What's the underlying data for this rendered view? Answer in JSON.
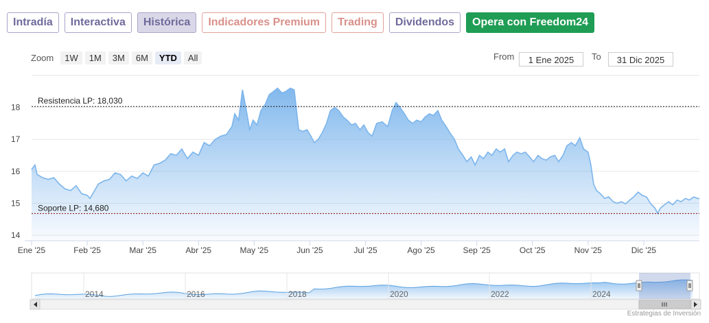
{
  "tabs": [
    {
      "label": "Intradía",
      "kind": "normal"
    },
    {
      "label": "Interactiva",
      "kind": "normal"
    },
    {
      "label": "Histórica",
      "kind": "active"
    },
    {
      "label": "Indicadores Premium",
      "kind": "premium"
    },
    {
      "label": "Trading",
      "kind": "premium"
    },
    {
      "label": "Dividendos",
      "kind": "normal"
    },
    {
      "label": "Opera con Freedom24",
      "kind": "green"
    }
  ],
  "zoom": {
    "label": "Zoom",
    "buttons": [
      "1W",
      "1M",
      "3M",
      "6M",
      "YTD",
      "All"
    ],
    "selected": "YTD"
  },
  "range": {
    "from_label": "From",
    "from_value": "1 Ene 2025",
    "to_label": "To",
    "to_value": "31 Dic 2025"
  },
  "colors": {
    "line": "#7cb5ec",
    "tab_accent": "#6f6a9b",
    "green": "#1f9d55",
    "premium": "#d9908a"
  },
  "chart_data": {
    "type": "area",
    "x_tick_labels": [
      "Ene '25",
      "Feb '25",
      "Mar '25",
      "Abr '25",
      "May '25",
      "Jun '25",
      "Jul '25",
      "Ago '25",
      "Sep '25",
      "Oct '25",
      "Nov '25",
      "Dic '25"
    ],
    "y_tick_labels": [
      "14",
      "15",
      "16",
      "17",
      "18"
    ],
    "ylim": [
      13.85,
      19.0
    ],
    "x_range_months": [
      0,
      12
    ],
    "grid": true,
    "legend": "none",
    "lines": [
      {
        "label": "Resistencia LP: 18,030",
        "value": 18.03
      },
      {
        "label": "Soporte LP: 14,680",
        "value": 14.68
      }
    ],
    "series": [
      {
        "points": [
          [
            0.0,
            16.05
          ],
          [
            0.06,
            16.2
          ],
          [
            0.1,
            15.9
          ],
          [
            0.2,
            15.8
          ],
          [
            0.3,
            15.75
          ],
          [
            0.4,
            15.8
          ],
          [
            0.5,
            15.6
          ],
          [
            0.6,
            15.45
          ],
          [
            0.7,
            15.4
          ],
          [
            0.8,
            15.55
          ],
          [
            0.9,
            15.3
          ],
          [
            1.0,
            15.25
          ],
          [
            1.05,
            15.15
          ],
          [
            1.1,
            15.3
          ],
          [
            1.2,
            15.6
          ],
          [
            1.3,
            15.7
          ],
          [
            1.4,
            15.75
          ],
          [
            1.5,
            15.95
          ],
          [
            1.6,
            15.9
          ],
          [
            1.7,
            15.7
          ],
          [
            1.8,
            15.85
          ],
          [
            1.9,
            15.78
          ],
          [
            2.0,
            15.95
          ],
          [
            2.1,
            15.85
          ],
          [
            2.2,
            16.2
          ],
          [
            2.3,
            16.25
          ],
          [
            2.4,
            16.35
          ],
          [
            2.5,
            16.55
          ],
          [
            2.6,
            16.5
          ],
          [
            2.7,
            16.7
          ],
          [
            2.8,
            16.4
          ],
          [
            2.9,
            16.6
          ],
          [
            3.0,
            16.5
          ],
          [
            3.1,
            16.9
          ],
          [
            3.2,
            16.8
          ],
          [
            3.3,
            17.0
          ],
          [
            3.4,
            17.1
          ],
          [
            3.5,
            17.15
          ],
          [
            3.6,
            17.4
          ],
          [
            3.65,
            17.8
          ],
          [
            3.72,
            17.6
          ],
          [
            3.79,
            18.55
          ],
          [
            3.85,
            18.0
          ],
          [
            3.92,
            17.3
          ],
          [
            3.98,
            17.6
          ],
          [
            4.05,
            17.45
          ],
          [
            4.12,
            17.9
          ],
          [
            4.2,
            18.1
          ],
          [
            4.27,
            18.4
          ],
          [
            4.35,
            18.5
          ],
          [
            4.42,
            18.6
          ],
          [
            4.5,
            18.45
          ],
          [
            4.57,
            18.5
          ],
          [
            4.65,
            18.6
          ],
          [
            4.72,
            18.55
          ],
          [
            4.8,
            17.3
          ],
          [
            4.87,
            17.25
          ],
          [
            4.95,
            17.3
          ],
          [
            5.02,
            17.1
          ],
          [
            5.08,
            16.9
          ],
          [
            5.15,
            17.0
          ],
          [
            5.22,
            17.2
          ],
          [
            5.3,
            17.5
          ],
          [
            5.37,
            17.9
          ],
          [
            5.45,
            18.0
          ],
          [
            5.52,
            17.9
          ],
          [
            5.6,
            17.7
          ],
          [
            5.67,
            17.6
          ],
          [
            5.75,
            17.45
          ],
          [
            5.82,
            17.5
          ],
          [
            5.9,
            17.3
          ],
          [
            5.97,
            17.45
          ],
          [
            6.05,
            17.2
          ],
          [
            6.12,
            17.1
          ],
          [
            6.2,
            17.5
          ],
          [
            6.3,
            17.55
          ],
          [
            6.4,
            17.4
          ],
          [
            6.48,
            17.9
          ],
          [
            6.55,
            18.15
          ],
          [
            6.62,
            18.0
          ],
          [
            6.7,
            17.8
          ],
          [
            6.77,
            17.6
          ],
          [
            6.85,
            17.5
          ],
          [
            6.92,
            17.6
          ],
          [
            7.0,
            17.55
          ],
          [
            7.07,
            17.7
          ],
          [
            7.15,
            17.8
          ],
          [
            7.22,
            17.75
          ],
          [
            7.3,
            17.9
          ],
          [
            7.37,
            17.6
          ],
          [
            7.45,
            17.4
          ],
          [
            7.52,
            17.2
          ],
          [
            7.6,
            17.0
          ],
          [
            7.67,
            16.7
          ],
          [
            7.75,
            16.5
          ],
          [
            7.82,
            16.3
          ],
          [
            7.9,
            16.45
          ],
          [
            7.97,
            16.2
          ],
          [
            8.05,
            16.5
          ],
          [
            8.12,
            16.4
          ],
          [
            8.2,
            16.6
          ],
          [
            8.27,
            16.5
          ],
          [
            8.35,
            16.7
          ],
          [
            8.42,
            16.6
          ],
          [
            8.5,
            16.7
          ],
          [
            8.57,
            16.3
          ],
          [
            8.65,
            16.5
          ],
          [
            8.72,
            16.6
          ],
          [
            8.8,
            16.55
          ],
          [
            8.87,
            16.6
          ],
          [
            8.95,
            16.45
          ],
          [
            9.02,
            16.3
          ],
          [
            9.1,
            16.5
          ],
          [
            9.17,
            16.4
          ],
          [
            9.25,
            16.35
          ],
          [
            9.32,
            16.45
          ],
          [
            9.4,
            16.5
          ],
          [
            9.47,
            16.3
          ],
          [
            9.55,
            16.5
          ],
          [
            9.62,
            16.8
          ],
          [
            9.7,
            16.9
          ],
          [
            9.77,
            16.8
          ],
          [
            9.85,
            17.05
          ],
          [
            9.92,
            16.7
          ],
          [
            10.0,
            16.6
          ],
          [
            10.05,
            16.2
          ],
          [
            10.1,
            15.6
          ],
          [
            10.15,
            15.4
          ],
          [
            10.22,
            15.3
          ],
          [
            10.3,
            15.15
          ],
          [
            10.37,
            15.2
          ],
          [
            10.45,
            15.05
          ],
          [
            10.52,
            15.0
          ],
          [
            10.6,
            15.05
          ],
          [
            10.67,
            14.98
          ],
          [
            10.75,
            15.1
          ],
          [
            10.82,
            15.2
          ],
          [
            10.9,
            15.35
          ],
          [
            10.97,
            15.25
          ],
          [
            11.05,
            15.2
          ],
          [
            11.12,
            15.0
          ],
          [
            11.2,
            14.85
          ],
          [
            11.25,
            14.68
          ],
          [
            11.3,
            14.85
          ],
          [
            11.37,
            14.95
          ],
          [
            11.45,
            15.05
          ],
          [
            11.52,
            14.95
          ],
          [
            11.6,
            15.1
          ],
          [
            11.67,
            15.05
          ],
          [
            11.75,
            15.15
          ],
          [
            11.82,
            15.1
          ],
          [
            11.9,
            15.2
          ],
          [
            11.97,
            15.15
          ],
          [
            12.0,
            15.15
          ]
        ]
      }
    ],
    "navigator": {
      "x_tick_labels": [
        "2014",
        "2016",
        "2018",
        "2020",
        "2022",
        "2024"
      ]
    }
  },
  "credits": "Estrategias de Inversión"
}
